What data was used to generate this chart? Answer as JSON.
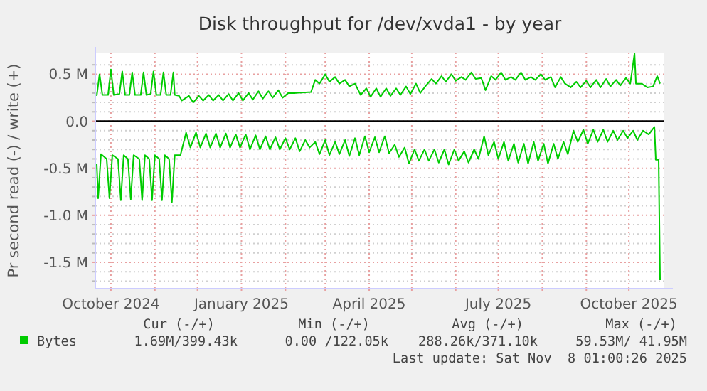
{
  "chart_data": {
    "type": "line",
    "title": "Disk throughput for /dev/xvda1 - by year",
    "ylabel": "Pr second read (-) / write (+)",
    "xlim": [
      "2024-09-20",
      "2025-10-26"
    ],
    "xticks": [
      {
        "value": "2024-10-01",
        "label": "October 2024"
      },
      {
        "value": "2024-11-01",
        "label": null
      },
      {
        "value": "2024-12-01",
        "label": null
      },
      {
        "value": "2025-01-01",
        "label": "January 2025"
      },
      {
        "value": "2025-02-01",
        "label": null
      },
      {
        "value": "2025-03-01",
        "label": null
      },
      {
        "value": "2025-04-01",
        "label": "April 2025"
      },
      {
        "value": "2025-05-01",
        "label": null
      },
      {
        "value": "2025-06-01",
        "label": null
      },
      {
        "value": "2025-07-01",
        "label": "July 2025"
      },
      {
        "value": "2025-08-01",
        "label": null
      },
      {
        "value": "2025-09-01",
        "label": null
      },
      {
        "value": "2025-10-01",
        "label": "October 2025"
      }
    ],
    "ylim": [
      -1.78,
      0.73
    ],
    "yticks": [
      {
        "value": 0.5,
        "label": "0.5 M"
      },
      {
        "value": 0,
        "label": "0.0"
      },
      {
        "value": -0.5,
        "label": "-0.5 M"
      },
      {
        "value": -1,
        "label": "-1.0 M"
      },
      {
        "value": -1.5,
        "label": "-1.5 M"
      },
      {
        "value": 0.6,
        "label": null
      },
      {
        "value": 0.4,
        "label": null
      },
      {
        "value": 0.3,
        "label": null
      },
      {
        "value": 0.2,
        "label": null
      },
      {
        "value": 0.1,
        "label": null
      },
      {
        "value": -0.1,
        "label": null
      },
      {
        "value": -0.2,
        "label": null
      },
      {
        "value": -0.3,
        "label": null
      },
      {
        "value": -0.4,
        "label": null
      },
      {
        "value": -0.6,
        "label": null
      },
      {
        "value": -0.7,
        "label": null
      },
      {
        "value": -0.8,
        "label": null
      },
      {
        "value": -0.9,
        "label": null
      },
      {
        "value": -1.1,
        "label": null
      },
      {
        "value": -1.2,
        "label": null
      },
      {
        "value": -1.3,
        "label": null
      },
      {
        "value": -1.4,
        "label": null
      },
      {
        "value": -1.6,
        "label": null
      },
      {
        "value": -1.7,
        "label": null
      }
    ],
    "grid": true,
    "legend": "bottom left",
    "marker": "none",
    "line_style": "solid",
    "ref_lines": [
      {
        "axis": "y",
        "value": 0,
        "color": "#000000"
      }
    ],
    "annotations": [
      "Cur (-/+)",
      "Min (-/+)",
      "Avg (-/+)",
      "Max (-/+)",
      "1.69M/399.43k",
      "0.00 /122.05k",
      "288.26k/371.10k",
      "59.53M/ 41.95M",
      "Last update: Sat Nov  8 01:00:26 2025"
    ],
    "series": [
      {
        "name": "Bytes",
        "color": "#00cc00",
        "x": [
          "2024-09-21",
          "2024-09-23",
          "2024-09-25",
          "2024-09-29",
          "2024-10-01",
          "2024-10-03",
          "2024-10-07",
          "2024-10-09",
          "2024-10-11",
          "2024-10-14",
          "2024-10-16",
          "2024-10-18",
          "2024-10-22",
          "2024-10-24",
          "2024-10-26",
          "2024-10-29",
          "2024-10-31",
          "2024-11-02",
          "2024-11-05",
          "2024-11-07",
          "2024-11-09",
          "2024-11-12",
          "2024-11-14",
          "2024-11-15",
          "2024-11-18",
          "2024-11-20",
          "2024-11-25",
          "2024-11-28",
          "2024-12-02",
          "2024-12-05",
          "2024-12-09",
          "2024-12-12",
          "2024-12-16",
          "2024-12-19",
          "2024-12-23",
          "2024-12-26",
          "2024-12-30",
          "2025-01-02",
          "2025-01-06",
          "2025-01-09",
          "2025-01-13",
          "2025-01-16",
          "2025-01-20",
          "2025-01-23",
          "2025-01-27",
          "2025-01-30",
          "2025-02-03",
          "2025-02-08",
          "2025-02-19",
          "2025-02-22",
          "2025-02-25",
          "2025-03-01",
          "2025-03-04",
          "2025-03-08",
          "2025-03-11",
          "2025-03-15",
          "2025-03-18",
          "2025-03-22",
          "2025-03-26",
          "2025-03-30",
          "2025-04-02",
          "2025-04-06",
          "2025-04-09",
          "2025-04-13",
          "2025-04-16",
          "2025-04-20",
          "2025-04-23",
          "2025-04-27",
          "2025-04-30",
          "2025-05-04",
          "2025-05-07",
          "2025-05-11",
          "2025-05-15",
          "2025-05-18",
          "2025-05-22",
          "2025-05-25",
          "2025-05-29",
          "2025-06-01",
          "2025-06-05",
          "2025-06-08",
          "2025-06-12",
          "2025-06-15",
          "2025-06-19",
          "2025-06-22",
          "2025-06-26",
          "2025-06-29",
          "2025-07-03",
          "2025-07-06",
          "2025-07-10",
          "2025-07-13",
          "2025-07-17",
          "2025-07-20",
          "2025-07-24",
          "2025-07-27",
          "2025-07-31",
          "2025-08-03",
          "2025-08-07",
          "2025-08-10",
          "2025-08-14",
          "2025-08-17",
          "2025-08-21",
          "2025-08-25",
          "2025-08-28",
          "2025-09-01",
          "2025-09-04",
          "2025-09-08",
          "2025-09-11",
          "2025-09-15",
          "2025-09-18",
          "2025-09-22",
          "2025-09-25",
          "2025-09-29",
          "2025-10-02",
          "2025-10-05",
          "2025-10-06",
          "2025-10-10",
          "2025-10-14",
          "2025-10-18",
          "2025-10-21",
          "2025-10-23"
        ],
        "values": [
          0.27,
          0.5,
          0.28,
          0.28,
          0.55,
          0.28,
          0.29,
          0.53,
          0.28,
          0.28,
          0.52,
          0.28,
          0.28,
          0.52,
          0.28,
          0.29,
          0.53,
          0.28,
          0.28,
          0.52,
          0.28,
          0.28,
          0.52,
          0.28,
          0.27,
          0.22,
          0.27,
          0.2,
          0.27,
          0.22,
          0.28,
          0.22,
          0.28,
          0.22,
          0.29,
          0.22,
          0.3,
          0.22,
          0.3,
          0.23,
          0.32,
          0.24,
          0.32,
          0.25,
          0.33,
          0.25,
          0.3,
          0.3,
          0.31,
          0.44,
          0.4,
          0.5,
          0.42,
          0.47,
          0.4,
          0.44,
          0.37,
          0.4,
          0.28,
          0.35,
          0.26,
          0.35,
          0.26,
          0.35,
          0.27,
          0.35,
          0.28,
          0.37,
          0.29,
          0.4,
          0.3,
          0.38,
          0.45,
          0.4,
          0.48,
          0.42,
          0.5,
          0.43,
          0.47,
          0.44,
          0.52,
          0.45,
          0.46,
          0.33,
          0.48,
          0.44,
          0.52,
          0.44,
          0.47,
          0.44,
          0.52,
          0.44,
          0.47,
          0.44,
          0.5,
          0.44,
          0.47,
          0.36,
          0.47,
          0.4,
          0.36,
          0.42,
          0.36,
          0.43,
          0.36,
          0.44,
          0.36,
          0.45,
          0.37,
          0.44,
          0.38,
          0.46,
          0.4,
          0.72,
          0.4,
          0.4,
          0.36,
          0.37,
          0.48,
          0.4
        ]
      },
      {
        "color": "#00cc00",
        "x": [
          "2024-09-21",
          "2024-09-22",
          "2024-09-24",
          "2024-09-28",
          "2024-09-30",
          "2024-10-02",
          "2024-10-06",
          "2024-10-08",
          "2024-10-10",
          "2024-10-13",
          "2024-10-15",
          "2024-10-17",
          "2024-10-21",
          "2024-10-23",
          "2024-10-25",
          "2024-10-28",
          "2024-10-30",
          "2024-11-01",
          "2024-11-04",
          "2024-11-06",
          "2024-11-08",
          "2024-11-11",
          "2024-11-13",
          "2024-11-15",
          "2024-11-19",
          "2024-11-23",
          "2024-11-26",
          "2024-11-30",
          "2024-12-03",
          "2024-12-07",
          "2024-12-10",
          "2024-12-14",
          "2024-12-17",
          "2024-12-21",
          "2024-12-24",
          "2024-12-28",
          "2024-12-31",
          "2025-01-04",
          "2025-01-07",
          "2025-01-11",
          "2025-01-14",
          "2025-01-18",
          "2025-01-21",
          "2025-01-25",
          "2025-01-28",
          "2025-02-01",
          "2025-02-04",
          "2025-02-08",
          "2025-02-11",
          "2025-02-15",
          "2025-02-18",
          "2025-02-22",
          "2025-02-25",
          "2025-03-01",
          "2025-03-04",
          "2025-03-08",
          "2025-03-11",
          "2025-03-15",
          "2025-03-18",
          "2025-03-22",
          "2025-03-25",
          "2025-03-29",
          "2025-04-01",
          "2025-04-05",
          "2025-04-08",
          "2025-04-12",
          "2025-04-15",
          "2025-04-19",
          "2025-04-22",
          "2025-04-26",
          "2025-04-29",
          "2025-05-03",
          "2025-05-06",
          "2025-05-10",
          "2025-05-13",
          "2025-05-17",
          "2025-05-20",
          "2025-05-24",
          "2025-05-27",
          "2025-05-31",
          "2025-06-03",
          "2025-06-07",
          "2025-06-10",
          "2025-06-14",
          "2025-06-17",
          "2025-06-21",
          "2025-06-24",
          "2025-06-28",
          "2025-07-01",
          "2025-07-05",
          "2025-07-08",
          "2025-07-12",
          "2025-07-15",
          "2025-07-19",
          "2025-07-22",
          "2025-07-26",
          "2025-07-29",
          "2025-08-02",
          "2025-08-05",
          "2025-08-09",
          "2025-08-12",
          "2025-08-16",
          "2025-08-19",
          "2025-08-23",
          "2025-08-26",
          "2025-08-30",
          "2025-09-02",
          "2025-09-06",
          "2025-09-09",
          "2025-09-13",
          "2025-09-16",
          "2025-09-20",
          "2025-09-23",
          "2025-09-27",
          "2025-09-30",
          "2025-10-04",
          "2025-10-07",
          "2025-10-11",
          "2025-10-15",
          "2025-10-19",
          "2025-10-20",
          "2025-10-22",
          "2025-10-23"
        ],
        "values": [
          -0.45,
          -0.82,
          -0.35,
          -0.4,
          -0.82,
          -0.36,
          -0.4,
          -0.84,
          -0.36,
          -0.4,
          -0.83,
          -0.36,
          -0.4,
          -0.84,
          -0.36,
          -0.4,
          -0.84,
          -0.36,
          -0.4,
          -0.84,
          -0.36,
          -0.4,
          -0.86,
          -0.36,
          -0.36,
          -0.12,
          -0.28,
          -0.12,
          -0.28,
          -0.13,
          -0.28,
          -0.13,
          -0.28,
          -0.13,
          -0.28,
          -0.14,
          -0.28,
          -0.14,
          -0.3,
          -0.15,
          -0.3,
          -0.16,
          -0.3,
          -0.17,
          -0.3,
          -0.18,
          -0.3,
          -0.18,
          -0.32,
          -0.2,
          -0.28,
          -0.22,
          -0.35,
          -0.2,
          -0.36,
          -0.22,
          -0.35,
          -0.2,
          -0.37,
          -0.18,
          -0.36,
          -0.16,
          -0.33,
          -0.17,
          -0.33,
          -0.16,
          -0.34,
          -0.25,
          -0.38,
          -0.28,
          -0.45,
          -0.3,
          -0.42,
          -0.3,
          -0.42,
          -0.3,
          -0.44,
          -0.3,
          -0.46,
          -0.3,
          -0.42,
          -0.32,
          -0.44,
          -0.3,
          -0.4,
          -0.16,
          -0.36,
          -0.22,
          -0.4,
          -0.22,
          -0.42,
          -0.24,
          -0.44,
          -0.24,
          -0.45,
          -0.22,
          -0.42,
          -0.24,
          -0.45,
          -0.24,
          -0.4,
          -0.22,
          -0.35,
          -0.1,
          -0.22,
          -0.09,
          -0.24,
          -0.09,
          -0.22,
          -0.09,
          -0.22,
          -0.1,
          -0.2,
          -0.1,
          -0.18,
          -0.1,
          -0.2,
          -0.1,
          -0.14,
          -0.06,
          -0.41,
          -0.41,
          -1.69
        ]
      }
    ]
  }
}
